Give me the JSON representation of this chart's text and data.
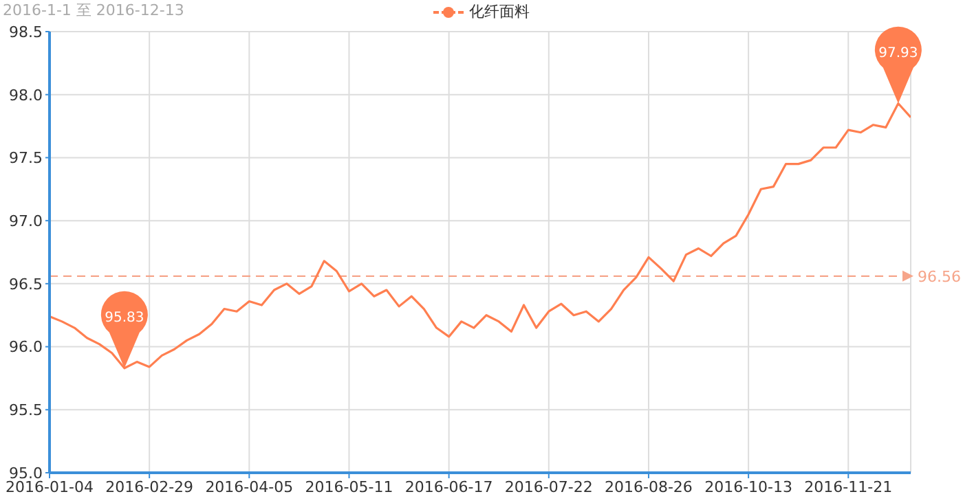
{
  "chart_data": {
    "type": "line",
    "subtitle": "2016-1-1 至 2016-12-13",
    "categories": [
      "2016-01-04",
      null,
      null,
      null,
      null,
      null,
      null,
      null,
      "2016-02-29",
      null,
      null,
      null,
      null,
      null,
      null,
      null,
      "2016-04-05",
      null,
      null,
      null,
      null,
      null,
      null,
      null,
      "2016-05-11",
      null,
      null,
      null,
      null,
      null,
      null,
      null,
      "2016-06-17",
      null,
      null,
      null,
      null,
      null,
      null,
      null,
      "2016-07-22",
      null,
      null,
      null,
      null,
      null,
      null,
      null,
      "2016-08-26",
      null,
      null,
      null,
      null,
      null,
      null,
      null,
      "2016-10-13",
      null,
      null,
      null,
      null,
      null,
      null,
      null,
      "2016-11-21",
      null,
      null,
      null,
      null,
      null
    ],
    "series": [
      {
        "name": "化纤面料",
        "color": "#ff7f50",
        "values": [
          96.24,
          96.2,
          96.15,
          96.07,
          96.02,
          95.95,
          95.83,
          95.88,
          95.84,
          95.93,
          95.98,
          96.05,
          96.1,
          96.18,
          96.3,
          96.28,
          96.36,
          96.33,
          96.45,
          96.5,
          96.42,
          96.48,
          96.68,
          96.6,
          96.44,
          96.5,
          96.4,
          96.45,
          96.32,
          96.4,
          96.3,
          96.15,
          96.08,
          96.2,
          96.15,
          96.25,
          96.2,
          96.12,
          96.33,
          96.15,
          96.28,
          96.34,
          96.25,
          96.28,
          96.2,
          96.3,
          96.45,
          96.55,
          96.71,
          96.62,
          96.52,
          96.73,
          96.78,
          96.72,
          96.82,
          96.88,
          97.05,
          97.25,
          97.27,
          97.45,
          97.45,
          97.48,
          97.58,
          97.58,
          97.72,
          97.7,
          97.76,
          97.74,
          97.93,
          97.82
        ]
      }
    ],
    "ylim": [
      95.0,
      98.5
    ],
    "yticks": [
      {
        "value": 95.0,
        "label": "95.0"
      },
      {
        "value": 95.5,
        "label": "95.5"
      },
      {
        "value": 96.0,
        "label": "96.0"
      },
      {
        "value": 96.5,
        "label": "96.5"
      },
      {
        "value": 97.0,
        "label": "97.0"
      },
      {
        "value": 97.5,
        "label": "97.5"
      },
      {
        "value": 98.0,
        "label": "98.0"
      },
      {
        "value": 98.5,
        "label": "98.5"
      }
    ],
    "ref_lines": [
      {
        "axis": "y",
        "value": 96.56,
        "label": "96.56",
        "color": "#f6a58a",
        "line_style": "dashed"
      }
    ],
    "annotations": [
      "97.93",
      "95.83"
    ],
    "grid": true,
    "legend": "top",
    "marker": "none",
    "line_style": "solid"
  }
}
